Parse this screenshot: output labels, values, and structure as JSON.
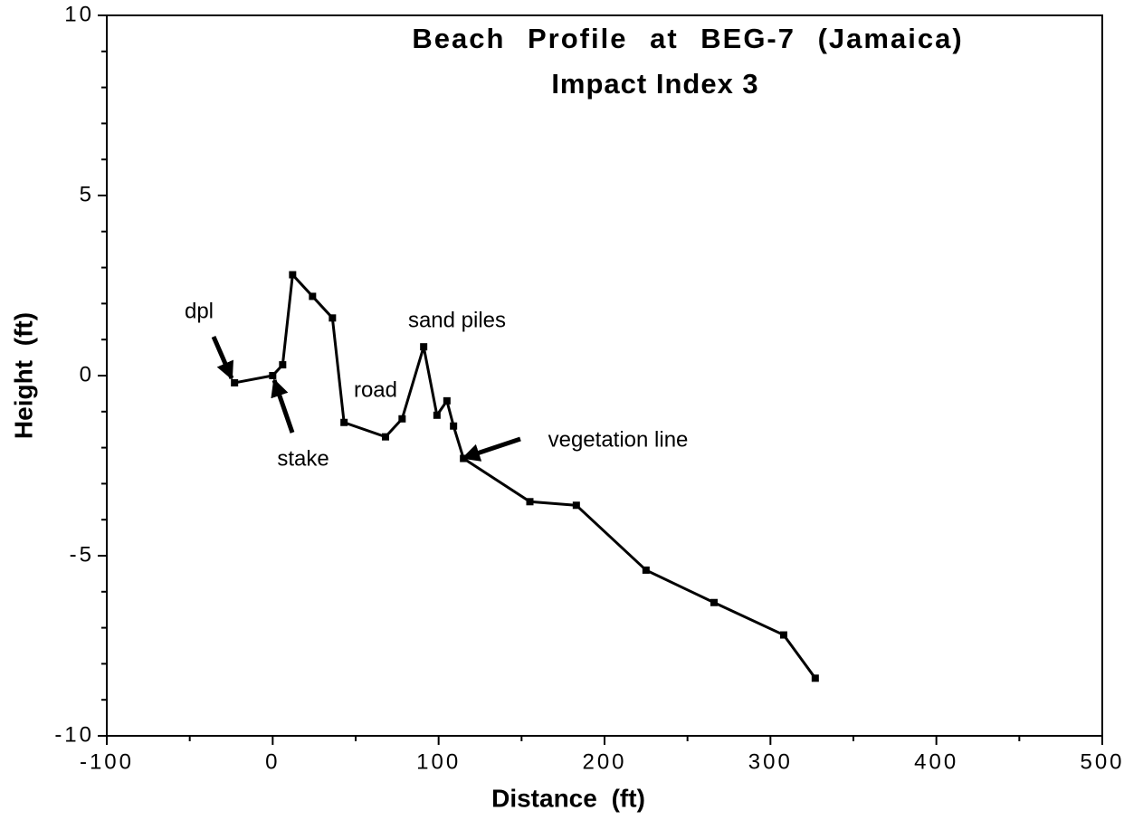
{
  "chart_data": {
    "type": "line",
    "title": [
      "Beach Profile at BEG-7 (Jamaica)",
      "Impact Index 3"
    ],
    "x_label": "Distance (ft)",
    "y_label": "Height (ft)",
    "x": [
      -23,
      0,
      6,
      12,
      24,
      36,
      43,
      68,
      78,
      91,
      99,
      105,
      109,
      115,
      155,
      183,
      225,
      266,
      308,
      327
    ],
    "series": [
      {
        "color": "#000000",
        "values": [
          -0.2,
          0,
          0.3,
          2.8,
          2.2,
          1.6,
          -1.3,
          -1.7,
          -1.2,
          0.8,
          -1.1,
          -0.7,
          -1.4,
          -2.3,
          -3.5,
          -3.6,
          -5.4,
          -6.3,
          -7.2,
          -8.4
        ]
      }
    ],
    "xlim": [
      -100,
      500
    ],
    "xticks": [
      -100,
      0,
      100,
      200,
      300,
      400,
      500
    ],
    "xminor": [
      -50,
      50,
      150,
      250,
      350,
      450
    ],
    "ylim": [
      -10,
      10
    ],
    "yticks": [
      -10,
      -5,
      0,
      5,
      10
    ],
    "yminor": [
      -9,
      -8,
      -7,
      -6,
      -4,
      -3,
      -2,
      -1,
      1,
      2,
      3,
      4,
      6,
      7,
      8,
      9
    ],
    "annotations": [
      "dpl",
      "stake",
      "road",
      "sand piles",
      "vegetation line"
    ]
  }
}
